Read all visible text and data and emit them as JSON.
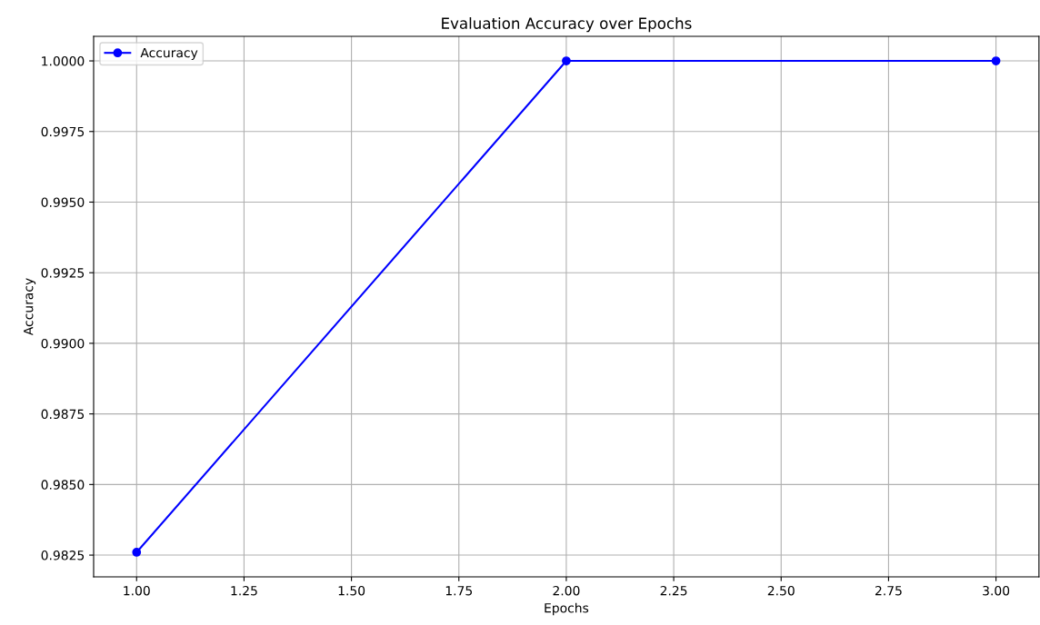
{
  "chart_data": {
    "type": "line",
    "title": "Evaluation Accuracy over Epochs",
    "xlabel": "Epochs",
    "ylabel": "Accuracy",
    "x": [
      1,
      2,
      3
    ],
    "series": [
      {
        "name": "Accuracy",
        "color": "#0000ff",
        "values": [
          0.9826,
          1.0,
          1.0
        ]
      }
    ],
    "xlim": [
      0.9,
      3.1
    ],
    "xticks": [
      {
        "value": 1,
        "label": "1.00"
      },
      {
        "value": 1.25,
        "label": "1.25"
      },
      {
        "value": 1.5,
        "label": "1.50"
      },
      {
        "value": 1.75,
        "label": "1.75"
      },
      {
        "value": 2,
        "label": "2.00"
      },
      {
        "value": 2.25,
        "label": "2.25"
      },
      {
        "value": 2.5,
        "label": "2.50"
      },
      {
        "value": 2.75,
        "label": "2.75"
      },
      {
        "value": 3,
        "label": "3.00"
      }
    ],
    "ylim": [
      0.98173,
      1.00087
    ],
    "yticks": [
      0.9825,
      {
        "value": 0.985,
        "label": "0.9850"
      },
      {
        "value": 0.9875,
        "label": "0.9875"
      },
      {
        "value": 0.99,
        "label": "0.9900"
      },
      0.9925,
      {
        "value": 0.995,
        "label": "0.9950"
      },
      0.9975,
      {
        "value": 1.0,
        "label": "1.0000"
      }
    ],
    "grid": true,
    "legend": "top left",
    "marker": "circle",
    "line_style": "solid"
  }
}
